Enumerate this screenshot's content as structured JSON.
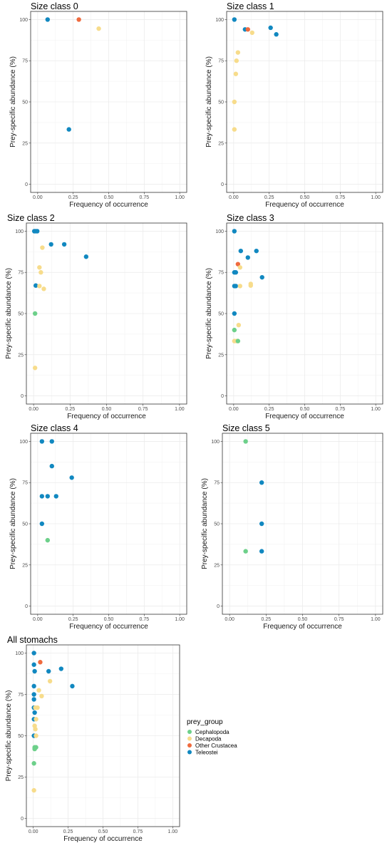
{
  "colors": {
    "Cephalopoda": "#6dd08a",
    "Decapoda": "#f7dc8b",
    "Other Crustacea": "#ef6a3e",
    "Teleostei": "#1188c0"
  },
  "legend": {
    "title": "prey_group",
    "items": [
      "Cephalopoda",
      "Decapoda",
      "Other Crustacea",
      "Teleostei"
    ]
  },
  "chart_data": [
    {
      "type": "scatter",
      "title": "Size class 0",
      "xlabel": "Frequency of occurrence",
      "ylabel": "Prey-specific abundance (%)",
      "xlim": [
        0,
        1
      ],
      "ylim": [
        0,
        100
      ],
      "xticks": [
        "0.00",
        "0.25",
        "0.50",
        "0.75",
        "1.00"
      ],
      "yticks": [
        "0",
        "25",
        "50",
        "75",
        "100"
      ],
      "grid": true,
      "points": [
        {
          "x": 0.07,
          "y": 100,
          "group": "Teleostei"
        },
        {
          "x": 0.29,
          "y": 100,
          "group": "Other Crustacea"
        },
        {
          "x": 0.43,
          "y": 94.5,
          "group": "Decapoda"
        },
        {
          "x": 0.22,
          "y": 33.3,
          "group": "Teleostei"
        }
      ]
    },
    {
      "type": "scatter",
      "title": "Size class 1",
      "xlabel": "Frequency of occurrence",
      "ylabel": "Prey-specific abundance (%)",
      "xlim": [
        0,
        1
      ],
      "ylim": [
        0,
        100
      ],
      "xticks": [
        "0.00",
        "0.25",
        "0.50",
        "0.75",
        "1.00"
      ],
      "yticks": [
        "0",
        "25",
        "50",
        "75",
        "100"
      ],
      "grid": true,
      "points": [
        {
          "x": 0.005,
          "y": 100,
          "group": "Teleostei"
        },
        {
          "x": 0.08,
          "y": 94,
          "group": "Teleostei"
        },
        {
          "x": 0.1,
          "y": 94,
          "group": "Other Crustacea"
        },
        {
          "x": 0.13,
          "y": 92,
          "group": "Decapoda"
        },
        {
          "x": 0.26,
          "y": 95,
          "group": "Teleostei"
        },
        {
          "x": 0.3,
          "y": 91,
          "group": "Teleostei"
        },
        {
          "x": 0.03,
          "y": 80,
          "group": "Decapoda"
        },
        {
          "x": 0.02,
          "y": 75,
          "group": "Decapoda"
        },
        {
          "x": 0.015,
          "y": 67,
          "group": "Decapoda"
        },
        {
          "x": 0.005,
          "y": 50,
          "group": "Decapoda"
        },
        {
          "x": 0.005,
          "y": 33.3,
          "group": "Decapoda"
        }
      ]
    },
    {
      "type": "scatter",
      "title": "Size class 2",
      "xlabel": "Frequency of occurrence",
      "ylabel": "Prey-specific abundance (%)",
      "xlim": [
        0,
        1
      ],
      "ylim": [
        0,
        100
      ],
      "xticks": [
        "0.00",
        "0.25",
        "0.50",
        "0.75",
        "1.00"
      ],
      "yticks": [
        "0",
        "25",
        "50",
        "75",
        "100"
      ],
      "grid": true,
      "points": [
        {
          "x": 0.005,
          "y": 100,
          "group": "Teleostei"
        },
        {
          "x": 0.015,
          "y": 100,
          "group": "Teleostei"
        },
        {
          "x": 0.025,
          "y": 100,
          "group": "Teleostei"
        },
        {
          "x": 0.06,
          "y": 90,
          "group": "Decapoda"
        },
        {
          "x": 0.12,
          "y": 92,
          "group": "Teleostei"
        },
        {
          "x": 0.21,
          "y": 92,
          "group": "Teleostei"
        },
        {
          "x": 0.36,
          "y": 84.5,
          "group": "Teleostei"
        },
        {
          "x": 0.04,
          "y": 78,
          "group": "Decapoda"
        },
        {
          "x": 0.05,
          "y": 75,
          "group": "Decapoda"
        },
        {
          "x": 0.015,
          "y": 67,
          "group": "Teleostei"
        },
        {
          "x": 0.04,
          "y": 66.7,
          "group": "Decapoda"
        },
        {
          "x": 0.07,
          "y": 65,
          "group": "Decapoda"
        },
        {
          "x": 0.01,
          "y": 50,
          "group": "Cephalopoda"
        },
        {
          "x": 0.01,
          "y": 17,
          "group": "Decapoda"
        }
      ]
    },
    {
      "type": "scatter",
      "title": "Size class 3",
      "xlabel": "Frequency of occurrence",
      "ylabel": "Prey-specific abundance (%)",
      "xlim": [
        0,
        1
      ],
      "ylim": [
        0,
        100
      ],
      "xticks": [
        "0.00",
        "0.25",
        "0.50",
        "0.75",
        "1.00"
      ],
      "yticks": [
        "0",
        "25",
        "50",
        "75",
        "100"
      ],
      "grid": true,
      "points": [
        {
          "x": 0.005,
          "y": 100,
          "group": "Teleostei"
        },
        {
          "x": 0.05,
          "y": 88,
          "group": "Teleostei"
        },
        {
          "x": 0.16,
          "y": 88,
          "group": "Teleostei"
        },
        {
          "x": 0.1,
          "y": 84,
          "group": "Teleostei"
        },
        {
          "x": 0.03,
          "y": 80,
          "group": "Other Crustacea"
        },
        {
          "x": 0.045,
          "y": 78,
          "group": "Decapoda"
        },
        {
          "x": 0.005,
          "y": 75,
          "group": "Teleostei"
        },
        {
          "x": 0.015,
          "y": 75,
          "group": "Teleostei"
        },
        {
          "x": 0.2,
          "y": 72,
          "group": "Teleostei"
        },
        {
          "x": 0.005,
          "y": 66.7,
          "group": "Teleostei"
        },
        {
          "x": 0.015,
          "y": 66.7,
          "group": "Teleostei"
        },
        {
          "x": 0.045,
          "y": 66.7,
          "group": "Decapoda"
        },
        {
          "x": 0.12,
          "y": 67,
          "group": "Decapoda"
        },
        {
          "x": 0.12,
          "y": 68,
          "group": "Decapoda"
        },
        {
          "x": 0.005,
          "y": 50,
          "group": "Teleostei"
        },
        {
          "x": 0.035,
          "y": 43,
          "group": "Decapoda"
        },
        {
          "x": 0.005,
          "y": 40,
          "group": "Cephalopoda"
        },
        {
          "x": 0.005,
          "y": 33.3,
          "group": "Decapoda"
        },
        {
          "x": 0.02,
          "y": 33.3,
          "group": "Decapoda"
        },
        {
          "x": 0.03,
          "y": 33.3,
          "group": "Cephalopoda"
        }
      ]
    },
    {
      "type": "scatter",
      "title": "Size class 4",
      "xlabel": "Frequency of occurrence",
      "ylabel": "Prey-specific abundance (%)",
      "xlim": [
        0,
        1
      ],
      "ylim": [
        0,
        100
      ],
      "xticks": [
        "0.00",
        "0.25",
        "0.50",
        "0.75",
        "1.00"
      ],
      "yticks": [
        "0",
        "25",
        "50",
        "75",
        "100"
      ],
      "grid": true,
      "points": [
        {
          "x": 0.03,
          "y": 100,
          "group": "Teleostei"
        },
        {
          "x": 0.1,
          "y": 100,
          "group": "Teleostei"
        },
        {
          "x": 0.1,
          "y": 85,
          "group": "Teleostei"
        },
        {
          "x": 0.24,
          "y": 78,
          "group": "Teleostei"
        },
        {
          "x": 0.03,
          "y": 66.7,
          "group": "Teleostei"
        },
        {
          "x": 0.07,
          "y": 66.7,
          "group": "Teleostei"
        },
        {
          "x": 0.13,
          "y": 66.7,
          "group": "Teleostei"
        },
        {
          "x": 0.03,
          "y": 50,
          "group": "Teleostei"
        },
        {
          "x": 0.07,
          "y": 40,
          "group": "Cephalopoda"
        }
      ]
    },
    {
      "type": "scatter",
      "title": "Size class 5",
      "xlabel": "Frequency of occurrence",
      "ylabel": "Prey-specific abundance (%)",
      "xlim": [
        0,
        1
      ],
      "ylim": [
        0,
        100
      ],
      "xticks": [
        "0.00",
        "0.25",
        "0.50",
        "0.75",
        "1.00"
      ],
      "yticks": [
        "0",
        "25",
        "50",
        "75",
        "100"
      ],
      "grid": true,
      "points": [
        {
          "x": 0.11,
          "y": 100,
          "group": "Cephalopoda"
        },
        {
          "x": 0.22,
          "y": 75,
          "group": "Teleostei"
        },
        {
          "x": 0.22,
          "y": 50,
          "group": "Teleostei"
        },
        {
          "x": 0.11,
          "y": 33.3,
          "group": "Cephalopoda"
        },
        {
          "x": 0.22,
          "y": 33.3,
          "group": "Teleostei"
        }
      ]
    },
    {
      "type": "scatter",
      "title": "All stomachs",
      "xlabel": "Frequency of occurrence",
      "ylabel": "Prey-specific abundance (%)",
      "xlim": [
        0,
        1
      ],
      "ylim": [
        0,
        100
      ],
      "xticks": [
        "0.00",
        "0.25",
        "0.50",
        "0.75",
        "1.00"
      ],
      "yticks": [
        "0",
        "25",
        "50",
        "75",
        "100"
      ],
      "grid": true,
      "legend": "right",
      "points": [
        {
          "x": 0.005,
          "y": 100,
          "group": "Teleostei"
        },
        {
          "x": 0.005,
          "y": 93,
          "group": "Teleostei"
        },
        {
          "x": 0.05,
          "y": 94.5,
          "group": "Other Crustacea"
        },
        {
          "x": 0.01,
          "y": 89,
          "group": "Teleostei"
        },
        {
          "x": 0.11,
          "y": 89,
          "group": "Teleostei"
        },
        {
          "x": 0.2,
          "y": 90.5,
          "group": "Teleostei"
        },
        {
          "x": 0.12,
          "y": 83,
          "group": "Decapoda"
        },
        {
          "x": 0.28,
          "y": 80,
          "group": "Teleostei"
        },
        {
          "x": 0.005,
          "y": 80,
          "group": "Teleostei"
        },
        {
          "x": 0.04,
          "y": 77.5,
          "group": "Decapoda"
        },
        {
          "x": 0.005,
          "y": 75,
          "group": "Teleostei"
        },
        {
          "x": 0.06,
          "y": 74,
          "group": "Decapoda"
        },
        {
          "x": 0.005,
          "y": 72,
          "group": "Teleostei"
        },
        {
          "x": 0.005,
          "y": 67,
          "group": "Teleostei"
        },
        {
          "x": 0.015,
          "y": 67,
          "group": "Decapoda"
        },
        {
          "x": 0.03,
          "y": 67,
          "group": "Decapoda"
        },
        {
          "x": 0.01,
          "y": 64,
          "group": "Teleostei"
        },
        {
          "x": 0.005,
          "y": 60,
          "group": "Teleostei"
        },
        {
          "x": 0.02,
          "y": 60,
          "group": "Decapoda"
        },
        {
          "x": 0.01,
          "y": 56,
          "group": "Decapoda"
        },
        {
          "x": 0.015,
          "y": 54,
          "group": "Decapoda"
        },
        {
          "x": 0.005,
          "y": 50,
          "group": "Teleostei"
        },
        {
          "x": 0.02,
          "y": 50,
          "group": "Decapoda"
        },
        {
          "x": 0.01,
          "y": 43,
          "group": "Cephalopoda"
        },
        {
          "x": 0.02,
          "y": 43,
          "group": "Cephalopoda"
        },
        {
          "x": 0.01,
          "y": 42,
          "group": "Cephalopoda"
        },
        {
          "x": 0.005,
          "y": 33.3,
          "group": "Cephalopoda"
        },
        {
          "x": 0.005,
          "y": 17,
          "group": "Decapoda"
        }
      ]
    }
  ]
}
